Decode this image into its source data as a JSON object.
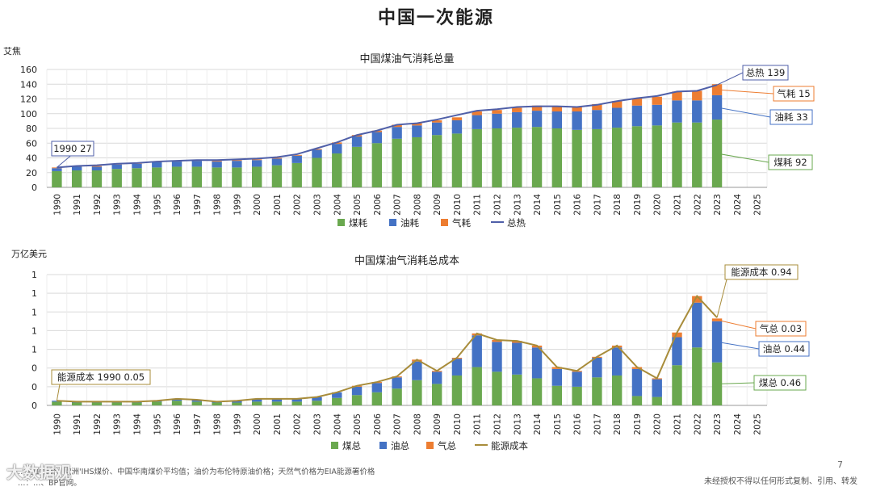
{
  "page": {
    "title": "中国一次能源",
    "footer_left": "…契亚煤价、欧洲'IHS煤价、中国华南煤价平均值；油价为布伦特原油价格；天然气价格为EIA能源署价格",
    "footer_left2": "…：…、BP官网。",
    "footer_right": "未经授权不得以任何形式复制、引用、转发",
    "page_number": "7",
    "watermark": "大数据观"
  },
  "chart_data": [
    {
      "type": "bar",
      "stacked": true,
      "title": "中国煤油气消耗总量",
      "unit_label": "艾焦",
      "categories": [
        "1990",
        "1991",
        "1992",
        "1993",
        "1994",
        "1995",
        "1996",
        "1997",
        "1998",
        "1999",
        "2000",
        "2001",
        "2002",
        "2003",
        "2004",
        "2005",
        "2006",
        "2007",
        "2008",
        "2009",
        "2010",
        "2011",
        "2012",
        "2013",
        "2014",
        "2015",
        "2016",
        "2017",
        "2018",
        "2019",
        "2020",
        "2021",
        "2022",
        "2023",
        "2024",
        "2025"
      ],
      "ylim": [
        0,
        160
      ],
      "yticks": [
        "0",
        "20",
        "40",
        "60",
        "80",
        "100",
        "120",
        "140",
        "160"
      ],
      "grid": true,
      "legend_position": "bottom",
      "series": [
        {
          "name": "煤耗",
          "color": "#6aa84f",
          "values": [
            22,
            23,
            23,
            25,
            26,
            27,
            28,
            28,
            27,
            27,
            28,
            30,
            33,
            40,
            46,
            55,
            60,
            66,
            68,
            71,
            73,
            79,
            80,
            81,
            82,
            80,
            78,
            79,
            81,
            83,
            84,
            88,
            88,
            92,
            null,
            null
          ]
        },
        {
          "name": "油耗",
          "color": "#4472c4",
          "values": [
            4,
            5,
            5,
            6,
            6,
            7,
            7,
            8,
            8,
            9,
            9,
            9,
            10,
            11,
            13,
            14,
            15,
            16,
            16,
            17,
            18,
            19,
            20,
            21,
            22,
            23,
            25,
            26,
            27,
            28,
            28,
            30,
            30,
            33,
            null,
            null
          ]
        },
        {
          "name": "气耗",
          "color": "#ed7d31",
          "values": [
            1,
            1,
            1,
            1,
            1,
            1,
            1,
            1,
            1,
            1,
            1,
            1,
            1,
            1,
            2,
            2,
            2,
            3,
            3,
            3,
            4,
            5,
            5,
            6,
            7,
            7,
            7,
            8,
            9,
            10,
            11,
            12,
            13,
            15,
            null,
            null
          ]
        }
      ],
      "line": {
        "name": "总热",
        "color": "#4f5fa8",
        "values": [
          27,
          29,
          30,
          32,
          33,
          35,
          36,
          37,
          37,
          38,
          39,
          41,
          45,
          53,
          61,
          71,
          77,
          85,
          87,
          92,
          98,
          104,
          106,
          109,
          110,
          110,
          109,
          112,
          117,
          121,
          124,
          130,
          131,
          139,
          null,
          null
        ]
      },
      "annotations": [
        {
          "label": "1990 27"
        },
        {
          "label": "总热 139"
        },
        {
          "label": "气耗 15"
        },
        {
          "label": "油耗 33"
        },
        {
          "label": "煤耗 92"
        }
      ]
    },
    {
      "type": "bar",
      "stacked": true,
      "title": "中国煤油气消耗总成本",
      "unit_label": "万亿美元",
      "categories": [
        "1990",
        "1991",
        "1992",
        "1993",
        "1994",
        "1995",
        "1996",
        "1997",
        "1998",
        "1999",
        "2000",
        "2001",
        "2002",
        "2003",
        "2004",
        "2005",
        "2006",
        "2007",
        "2008",
        "2009",
        "2010",
        "2011",
        "2012",
        "2013",
        "2014",
        "2015",
        "2016",
        "2017",
        "2018",
        "2019",
        "2020",
        "2021",
        "2022",
        "2023",
        "2024",
        "2025"
      ],
      "ylim": [
        0,
        1.4
      ],
      "yticks": [
        "0",
        "0",
        "0",
        "1",
        "1",
        "1",
        "1",
        "1"
      ],
      "grid": true,
      "legend_position": "bottom",
      "series": [
        {
          "name": "煤总",
          "color": "#6aa84f",
          "values": [
            0.04,
            0.03,
            0.03,
            0.03,
            0.03,
            0.04,
            0.05,
            0.04,
            0.03,
            0.03,
            0.04,
            0.04,
            0.04,
            0.05,
            0.08,
            0.11,
            0.14,
            0.18,
            0.27,
            0.23,
            0.32,
            0.41,
            0.36,
            0.33,
            0.29,
            0.21,
            0.2,
            0.3,
            0.32,
            0.1,
            0.09,
            0.43,
            0.62,
            0.46,
            null,
            null
          ]
        },
        {
          "name": "油总",
          "color": "#4472c4",
          "values": [
            0.01,
            0.01,
            0.01,
            0.01,
            0.01,
            0.01,
            0.02,
            0.02,
            0.01,
            0.02,
            0.03,
            0.03,
            0.03,
            0.04,
            0.06,
            0.09,
            0.1,
            0.12,
            0.2,
            0.13,
            0.18,
            0.34,
            0.32,
            0.34,
            0.33,
            0.18,
            0.16,
            0.21,
            0.3,
            0.29,
            0.19,
            0.3,
            0.48,
            0.44,
            null,
            null
          ]
        },
        {
          "name": "气总",
          "color": "#ed7d31",
          "values": [
            0,
            0,
            0,
            0,
            0,
            0,
            0,
            0,
            0,
            0,
            0,
            0,
            0,
            0,
            0,
            0.01,
            0.01,
            0.01,
            0.02,
            0.01,
            0.01,
            0.02,
            0.02,
            0.02,
            0.02,
            0.02,
            0.01,
            0.01,
            0.02,
            0.02,
            0.01,
            0.05,
            0.07,
            0.03,
            null,
            null
          ]
        }
      ],
      "line": {
        "name": "能源成本",
        "color": "#a88c3a",
        "values": [
          0.05,
          0.04,
          0.04,
          0.04,
          0.04,
          0.05,
          0.07,
          0.06,
          0.04,
          0.05,
          0.07,
          0.07,
          0.07,
          0.09,
          0.14,
          0.21,
          0.25,
          0.31,
          0.49,
          0.37,
          0.51,
          0.77,
          0.7,
          0.69,
          0.64,
          0.41,
          0.37,
          0.52,
          0.64,
          0.41,
          0.29,
          0.78,
          1.17,
          0.94,
          null,
          null
        ]
      },
      "annotations": [
        {
          "label": "能源成本 1990 0.05"
        },
        {
          "label": "能源成本 0.94"
        },
        {
          "label": "气总 0.03"
        },
        {
          "label": "油总 0.44"
        },
        {
          "label": "煤总 0.46"
        }
      ]
    }
  ]
}
